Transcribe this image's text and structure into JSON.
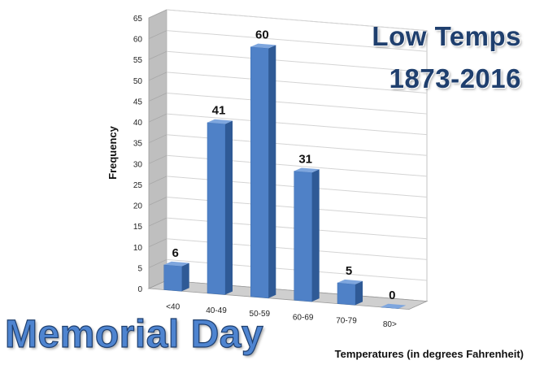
{
  "header": {
    "title_line1": "Low Temps",
    "title_line2": "1873-2016"
  },
  "caption": "Memorial Day",
  "chart_data": {
    "type": "bar",
    "categories": [
      "<40",
      "40-49",
      "50-59",
      "60-69",
      "70-79",
      "80>"
    ],
    "values": [
      6,
      41,
      60,
      31,
      5,
      0
    ],
    "data_labels": [
      "6",
      "41",
      "60",
      "31",
      "5",
      "0"
    ],
    "xlabel": "Temperatures (in degrees Fahrenheit)",
    "ylabel": "Frequency",
    "ylim": [
      0,
      65
    ],
    "yticks": [
      0,
      5,
      10,
      15,
      20,
      25,
      30,
      35,
      40,
      45,
      50,
      55,
      60,
      65
    ],
    "grid": true,
    "style": "3d-perspective",
    "colors": {
      "bar_front": "#4f81c7",
      "bar_side": "#2f5a96",
      "bar_top": "#7ea6de",
      "gridline": "#d4d4d4",
      "back_wall": "#ffffff",
      "side_wall": "#bfbfbf",
      "floor": "#cfcfcf"
    }
  }
}
